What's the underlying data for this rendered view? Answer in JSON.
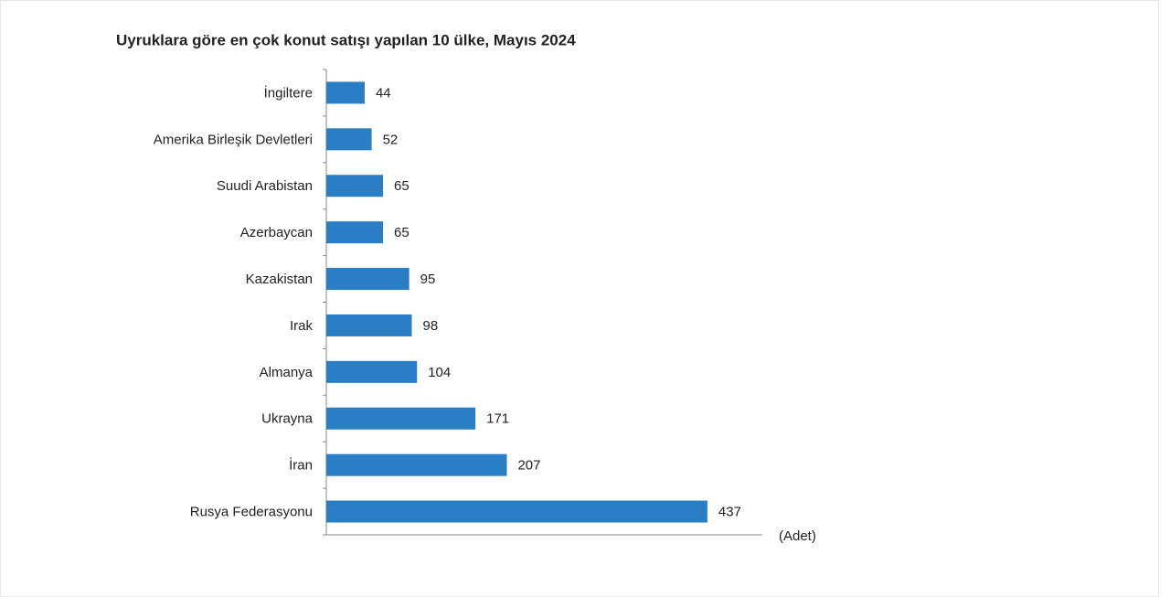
{
  "chart_data": {
    "type": "bar",
    "orientation": "horizontal",
    "title": "Uyruklara göre en çok konut satışı yapılan 10 ülke, Mayıs 2024",
    "x_label": "(Adet)",
    "categories": [
      "İngiltere",
      "Amerika Birleşik Devletleri",
      "Suudi Arabistan",
      "Azerbaycan",
      "Kazakistan",
      "Irak",
      "Almanya",
      "Ukrayna",
      "İran",
      "Rusya Federasyonu"
    ],
    "values": [
      44,
      52,
      65,
      65,
      95,
      98,
      104,
      171,
      207,
      437
    ],
    "color": "#2a7fc4",
    "xlim": [
      0,
      500
    ]
  }
}
